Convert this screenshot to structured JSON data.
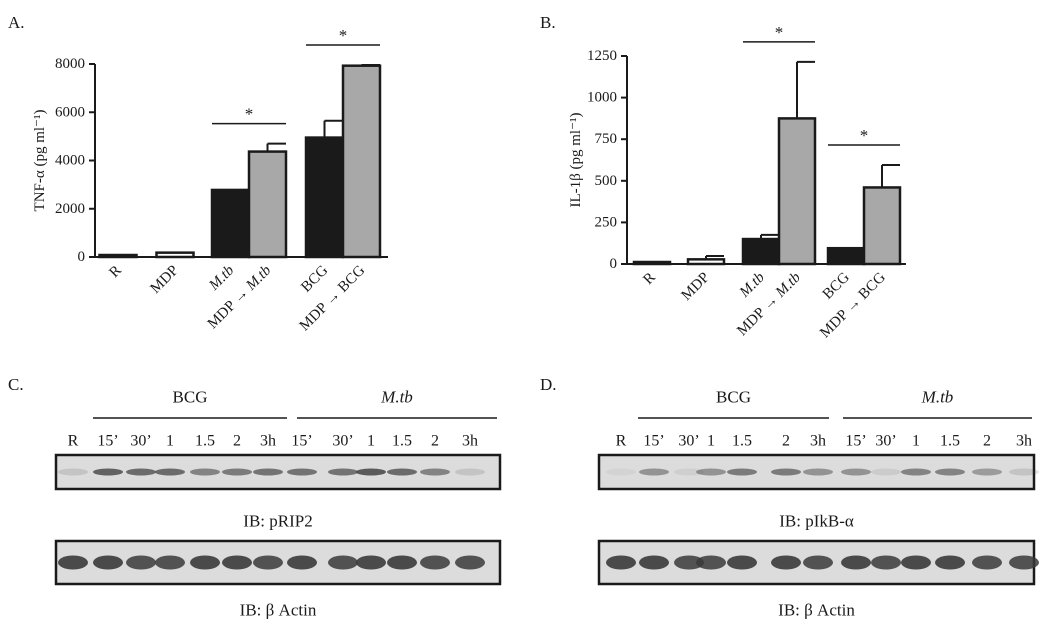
{
  "colors": {
    "dark": "#1a1a1a",
    "grey": "#a8a8a8",
    "white": "#ffffff",
    "blot_bg": "#dcdcdc",
    "band": "#3a3a3a"
  },
  "chart_data": [
    {
      "panel_label": "A.",
      "type": "bar",
      "ylabel": "TNF-α (pg ml⁻¹)",
      "ylim": [
        0,
        8000
      ],
      "yticks": [
        0,
        2000,
        4000,
        6000,
        8000
      ],
      "ytick_labels": [
        "0",
        "2000",
        "4000",
        "6000",
        "8000"
      ],
      "categories": [
        "R",
        "MDP",
        "M.tb",
        "MDP → M.tb",
        "BCG",
        "MDP → BCG"
      ],
      "values": [
        40,
        180,
        2780,
        4370,
        4950,
        7930
      ],
      "errors": [
        0,
        0,
        0,
        330,
        700,
        30
      ],
      "fills": [
        "white",
        "white",
        "dark",
        "grey",
        "dark",
        "grey"
      ],
      "significance": [
        {
          "from": 2,
          "to": 3,
          "label": "*"
        },
        {
          "from": 4,
          "to": 5,
          "label": "*"
        }
      ]
    },
    {
      "panel_label": "B.",
      "type": "bar",
      "ylabel": "IL-1β (pg ml⁻¹)",
      "ylim": [
        0,
        1250
      ],
      "yticks": [
        0,
        250,
        500,
        750,
        1000,
        1250
      ],
      "ytick_labels": [
        "0",
        "250",
        "500",
        "750",
        "1000",
        "1250"
      ],
      "categories": [
        "R",
        "MDP",
        "M.tb",
        "MDP → M.tb",
        "BCG",
        "MDP → BCG"
      ],
      "values": [
        5,
        28,
        150,
        875,
        95,
        460
      ],
      "errors": [
        0,
        20,
        25,
        340,
        0,
        135
      ],
      "fills": [
        "white",
        "white",
        "dark",
        "grey",
        "dark",
        "grey"
      ],
      "significance": [
        {
          "from": 2,
          "to": 3,
          "label": "*"
        },
        {
          "from": 4,
          "to": 5,
          "label": "*"
        }
      ]
    }
  ],
  "blots": [
    {
      "panel_label": "C.",
      "group_labels": [
        "BCG",
        "M.tb"
      ],
      "lanes": [
        "R",
        "15’",
        "30’",
        "1",
        "1.5",
        "2",
        "3h",
        "15’",
        "30’",
        "1",
        "1.5",
        "2",
        "3h"
      ],
      "top_caption": "IB:  pRIP2",
      "bottom_caption": "IB: β Actin",
      "top_intensity": [
        0.15,
        0.75,
        0.7,
        0.7,
        0.55,
        0.6,
        0.65,
        0.65,
        0.65,
        0.8,
        0.7,
        0.55,
        0.15
      ],
      "bottom_intensity": [
        0.9,
        0.9,
        0.85,
        0.85,
        0.9,
        0.9,
        0.85,
        0.9,
        0.85,
        0.9,
        0.9,
        0.85,
        0.85
      ]
    },
    {
      "panel_label": "D.",
      "group_labels": [
        "BCG",
        "M.tb"
      ],
      "lanes": [
        "R",
        "15’",
        "30’",
        "1",
        "1.5",
        "2",
        "3h",
        "15’",
        "30’",
        "1",
        "1.5",
        "2",
        "3h"
      ],
      "top_caption": "IB:  pIkB-α",
      "bottom_caption": "IB:  β Actin",
      "top_intensity": [
        0.05,
        0.45,
        0.08,
        0.45,
        0.6,
        0.6,
        0.45,
        0.45,
        0.1,
        0.55,
        0.55,
        0.4,
        0.15
      ],
      "bottom_intensity": [
        0.9,
        0.9,
        0.85,
        0.85,
        0.9,
        0.9,
        0.85,
        0.9,
        0.85,
        0.9,
        0.9,
        0.85,
        0.85
      ]
    }
  ]
}
